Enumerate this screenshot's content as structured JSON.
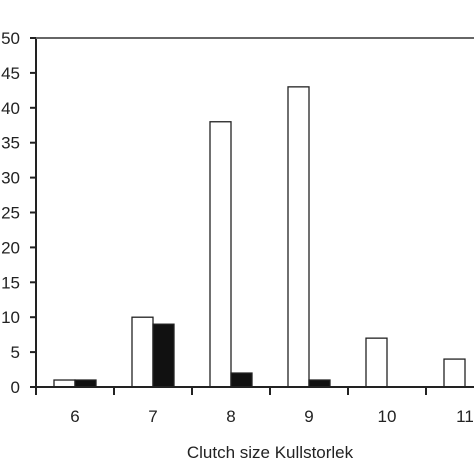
{
  "chart_data": {
    "type": "bar",
    "title": "",
    "xlabel": "Clutch size  Kullstorlek",
    "ylabel": "",
    "categories": [
      "6",
      "7",
      "8",
      "9",
      "10",
      "11"
    ],
    "ylim": [
      0,
      50
    ],
    "yticks": [
      "0",
      "5",
      "10",
      "15",
      "20",
      "25",
      "30",
      "35",
      "40",
      "45",
      "50"
    ],
    "grid": false,
    "legend": "none",
    "series": [
      {
        "values": [
          1,
          10,
          38,
          43,
          7,
          4
        ],
        "color": "#ffffff"
      },
      {
        "values": [
          1,
          9,
          2,
          1,
          0,
          0
        ],
        "color": "#111111"
      }
    ]
  }
}
